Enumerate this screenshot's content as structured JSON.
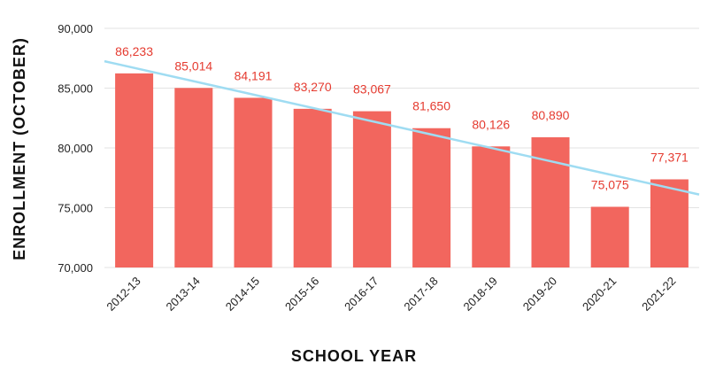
{
  "colors": {
    "bar": "#f2665e",
    "data_label": "#e53b30",
    "trendline": "#9fdcf2",
    "grid": "#e3e3e3",
    "text": "#222222"
  },
  "chart_data": {
    "type": "bar",
    "categories": [
      "2012-13",
      "2013-14",
      "2014-15",
      "2015-16",
      "2016-17",
      "2017-18",
      "2018-19",
      "2019-20",
      "2020-21",
      "2021-22"
    ],
    "values": [
      86233,
      85014,
      84191,
      83270,
      83067,
      81650,
      80126,
      80890,
      75075,
      77371
    ],
    "value_labels": [
      "86,233",
      "85,014",
      "84,191",
      "83,270",
      "83,067",
      "81,650",
      "80,126",
      "80,890",
      "75,075",
      "77,371"
    ],
    "title": "",
    "xlabel": "SCHOOL YEAR",
    "ylabel": "ENROLLMENT (OCTOBER)",
    "ylim": [
      70000,
      90000
    ],
    "yticks": [
      70000,
      75000,
      80000,
      85000,
      90000
    ],
    "ytick_labels": [
      "70,000",
      "75,000",
      "80,000",
      "85,000",
      "90,000"
    ],
    "trendline": {
      "type": "linear",
      "start": 87250,
      "end": 76100
    },
    "grid": true,
    "legend": "none"
  }
}
